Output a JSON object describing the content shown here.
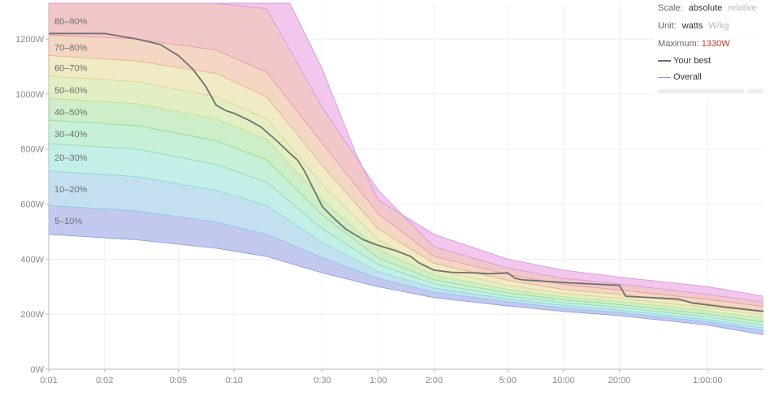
{
  "chart_data": {
    "type": "area",
    "x_ticks": [
      "0:01",
      "0:02",
      "0:05",
      "0:10",
      "0:30",
      "1:00",
      "2:00",
      "5:00",
      "10:00",
      "20:00",
      "1:00:00"
    ],
    "x_seconds": [
      1,
      2,
      5,
      10,
      30,
      60,
      120,
      300,
      600,
      1200,
      3600
    ],
    "x_max_seconds": 7200,
    "y_ticks": [
      "0W",
      "200W",
      "400W",
      "600W",
      "800W",
      "1000W",
      "1200W"
    ],
    "ylim": [
      0,
      1330
    ],
    "grid": true,
    "band_labels": [
      "5–10%",
      "10–20%",
      "20–30%",
      "30–40%",
      "40–50%",
      "50–60%",
      "60–70%",
      "70–80%",
      "80–90%"
    ],
    "band_label_y_watts": [
      540,
      655,
      770,
      855,
      935,
      1015,
      1095,
      1170,
      1265
    ],
    "band_colors": [
      "#c3c9ee",
      "#c4dff0",
      "#c3efe9",
      "#c8f0d8",
      "#cdeec8",
      "#e2efc5",
      "#f0eac5",
      "#f3d7c4",
      "#f1c7ca",
      "#f1c7ee"
    ],
    "band_line_colors": [
      "#8fa0e0",
      "#8cc7e6",
      "#86dcd2",
      "#8ed9a6",
      "#98d88c",
      "#c9dc8c",
      "#e3d08c",
      "#e9b08a",
      "#e59aa0",
      "#dc96dc"
    ],
    "band_boundaries": [
      {
        "x": [
          1,
          3,
          8,
          15,
          30,
          60,
          120,
          300,
          600,
          1200,
          3600,
          7200
        ],
        "y": [
          490,
          470,
          440,
          410,
          350,
          300,
          260,
          230,
          210,
          195,
          160,
          125
        ]
      },
      {
        "x": [
          1,
          3,
          8,
          15,
          30,
          60,
          120,
          300,
          600,
          1200,
          3600,
          7200
        ],
        "y": [
          595,
          575,
          535,
          490,
          405,
          330,
          280,
          245,
          222,
          206,
          172,
          140
        ]
      },
      {
        "x": [
          1,
          3,
          8,
          15,
          30,
          60,
          120,
          300,
          600,
          1200,
          3600,
          7200
        ],
        "y": [
          720,
          700,
          650,
          595,
          460,
          355,
          295,
          255,
          232,
          215,
          180,
          150
        ]
      },
      {
        "x": [
          1,
          3,
          8,
          15,
          30,
          60,
          120,
          300,
          600,
          1200,
          3600,
          7200
        ],
        "y": [
          820,
          800,
          745,
          680,
          510,
          380,
          310,
          265,
          242,
          225,
          190,
          160
        ]
      },
      {
        "x": [
          1,
          3,
          8,
          15,
          30,
          60,
          120,
          300,
          600,
          1200,
          3600,
          7200
        ],
        "y": [
          905,
          885,
          830,
          760,
          560,
          405,
          325,
          277,
          252,
          235,
          200,
          172
        ]
      },
      {
        "x": [
          1,
          3,
          8,
          15,
          30,
          60,
          120,
          300,
          600,
          1200,
          3600,
          7200
        ],
        "y": [
          985,
          965,
          910,
          835,
          615,
          435,
          342,
          290,
          263,
          246,
          212,
          185
        ]
      },
      {
        "x": [
          1,
          3,
          8,
          15,
          30,
          60,
          120,
          300,
          600,
          1200,
          3600,
          7200
        ],
        "y": [
          1065,
          1045,
          990,
          910,
          670,
          470,
          362,
          305,
          275,
          258,
          224,
          198
        ]
      },
      {
        "x": [
          1,
          3,
          8,
          15,
          30,
          60,
          120,
          300,
          600,
          1200,
          3600,
          7200
        ],
        "y": [
          1140,
          1120,
          1075,
          990,
          740,
          510,
          385,
          323,
          290,
          272,
          238,
          212
        ]
      },
      {
        "x": [
          1,
          3,
          8,
          15,
          30,
          60,
          120,
          300,
          600,
          1200,
          3600,
          7200
        ],
        "y": [
          1215,
          1200,
          1160,
          1080,
          820,
          565,
          410,
          345,
          308,
          288,
          254,
          228
        ]
      },
      {
        "x": [
          1,
          3,
          8,
          15,
          30,
          60,
          120,
          300,
          600,
          1200,
          3600,
          7200
        ],
        "y": [
          1330,
          1330,
          1330,
          1310,
          950,
          650,
          445,
          368,
          330,
          310,
          272,
          243
        ]
      },
      {
        "x": [
          1,
          3,
          8,
          15,
          20,
          30,
          45,
          60,
          120,
          300,
          600,
          1200,
          3600,
          7200
        ],
        "y": [
          1330,
          1330,
          1330,
          1330,
          1330,
          1090,
          790,
          615,
          490,
          400,
          360,
          335,
          300,
          265
        ]
      }
    ],
    "series": [
      {
        "name": "Your best",
        "color": "#707070",
        "x": [
          1,
          2,
          3,
          4,
          5,
          6,
          7,
          8,
          9,
          10,
          12,
          14,
          17,
          20,
          22,
          24,
          30,
          35,
          40,
          50,
          60,
          75,
          90,
          100,
          120,
          150,
          200,
          240,
          300,
          330,
          360,
          600,
          1200,
          1300,
          2500,
          3000,
          3200,
          4500,
          7200
        ],
        "y": [
          1220,
          1220,
          1200,
          1180,
          1140,
          1090,
          1030,
          960,
          940,
          930,
          905,
          880,
          830,
          785,
          760,
          720,
          590,
          545,
          510,
          470,
          450,
          430,
          410,
          385,
          360,
          352,
          350,
          347,
          350,
          330,
          325,
          315,
          305,
          265,
          255,
          240,
          238,
          225,
          210
        ]
      }
    ]
  },
  "legend": {
    "scale_key": "Scale:",
    "scale_active": "absolute",
    "scale_alt": "relative",
    "unit_key": "Unit:",
    "unit_active": "watts",
    "unit_alt": "W/kg",
    "max_key": "Maximum:",
    "max_value": "1330W",
    "best_label": "Your best",
    "overall_label": "Overall",
    "best_color": "#707070",
    "overall_color": "#7fa0d8"
  }
}
